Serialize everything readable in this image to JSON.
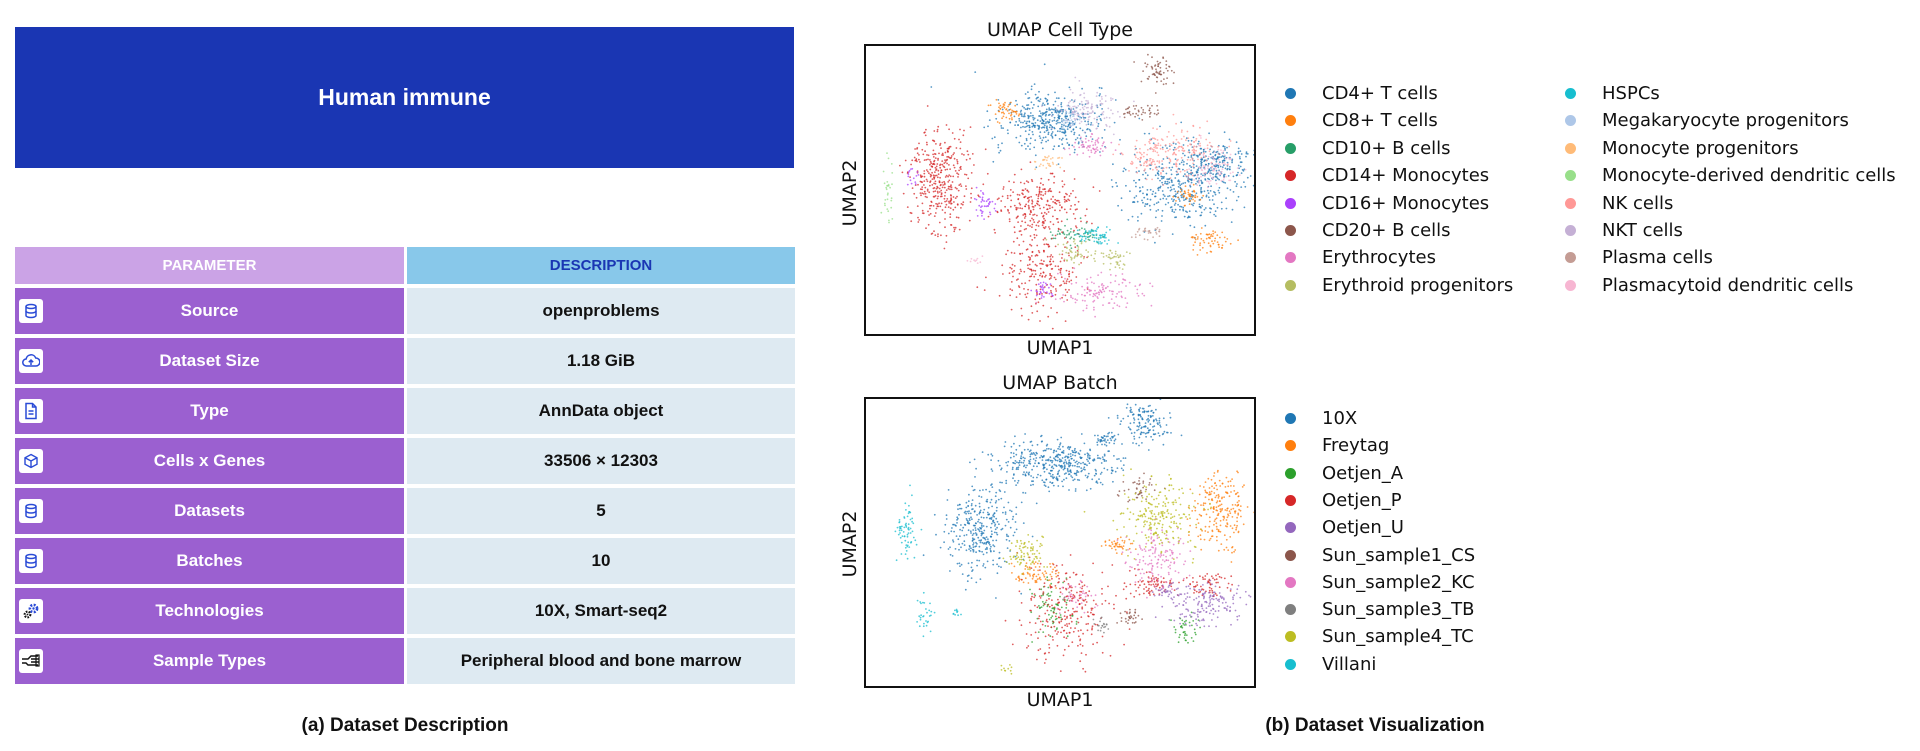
{
  "left_panel": {
    "banner_title": "Human immune",
    "table": {
      "header": [
        "PARAMETER",
        "DESCRIPTION"
      ],
      "rows": [
        {
          "icon": "database-icon",
          "parameter": "Source",
          "description": "openproblems"
        },
        {
          "icon": "cloud-upload-icon",
          "parameter": "Dataset Size",
          "description": "1.18 GiB"
        },
        {
          "icon": "document-icon",
          "parameter": "Type",
          "description": "AnnData object"
        },
        {
          "icon": "cube-icon",
          "parameter": "Cells x Genes",
          "description": "33506 × 12303"
        },
        {
          "icon": "database-icon",
          "parameter": "Datasets",
          "description": "5"
        },
        {
          "icon": "database-icon",
          "parameter": "Batches",
          "description": "10"
        },
        {
          "icon": "gears-icon",
          "parameter": "Technologies",
          "description": "10X, Smart-seq2"
        },
        {
          "icon": "hand-sample-icon",
          "parameter": "Sample Types",
          "description": "Peripheral blood and bone marrow"
        }
      ]
    },
    "caption": "(a) Dataset Description"
  },
  "right_panel": {
    "caption": "(b) Dataset Visualization"
  },
  "colors": {
    "banner": "#1a36b3",
    "param_header": "#cba3e6",
    "desc_header": "#88c8ea",
    "param_cell": "#9b60d0",
    "desc_cell": "#deeaf2"
  },
  "chart_data": [
    {
      "type": "scatter",
      "title": "UMAP Cell Type",
      "xlabel": "UMAP1",
      "ylabel": "UMAP2",
      "legend_position": "right, two columns",
      "series": [
        {
          "name": "CD4+ T cells",
          "color": "#1f77b4"
        },
        {
          "name": "CD8+ T cells",
          "color": "#ff7f0e"
        },
        {
          "name": "CD10+ B cells",
          "color": "#279e68"
        },
        {
          "name": "CD14+ Monocytes",
          "color": "#d62728"
        },
        {
          "name": "CD16+ Monocytes",
          "color": "#aa40fc"
        },
        {
          "name": "CD20+ B cells",
          "color": "#8c564b"
        },
        {
          "name": "Erythrocytes",
          "color": "#e377c2"
        },
        {
          "name": "Erythroid progenitors",
          "color": "#b5bd61"
        },
        {
          "name": "HSPCs",
          "color": "#17becf"
        },
        {
          "name": "Megakaryocyte progenitors",
          "color": "#aec7e8"
        },
        {
          "name": "Monocyte progenitors",
          "color": "#ffbb78"
        },
        {
          "name": "Monocyte-derived dendritic cells",
          "color": "#98df8a"
        },
        {
          "name": "NK cells",
          "color": "#ff9896"
        },
        {
          "name": "NKT cells",
          "color": "#c5b0d5"
        },
        {
          "name": "Plasma cells",
          "color": "#c49c94"
        },
        {
          "name": "Plasmacytoid dendritic cells",
          "color": "#f7b6d2"
        }
      ]
    },
    {
      "type": "scatter",
      "title": "UMAP Batch",
      "xlabel": "UMAP1",
      "ylabel": "UMAP2",
      "legend_position": "right",
      "series": [
        {
          "name": "10X",
          "color": "#1f77b4"
        },
        {
          "name": "Freytag",
          "color": "#ff7f0e"
        },
        {
          "name": "Oetjen_A",
          "color": "#2ca02c"
        },
        {
          "name": "Oetjen_P",
          "color": "#d62728"
        },
        {
          "name": "Oetjen_U",
          "color": "#9467bd"
        },
        {
          "name": "Sun_sample1_CS",
          "color": "#8c564b"
        },
        {
          "name": "Sun_sample2_KC",
          "color": "#e377c2"
        },
        {
          "name": "Sun_sample3_TB",
          "color": "#7f7f7f"
        },
        {
          "name": "Sun_sample4_TC",
          "color": "#bcbd22"
        },
        {
          "name": "Villani",
          "color": "#17becf"
        }
      ]
    }
  ]
}
